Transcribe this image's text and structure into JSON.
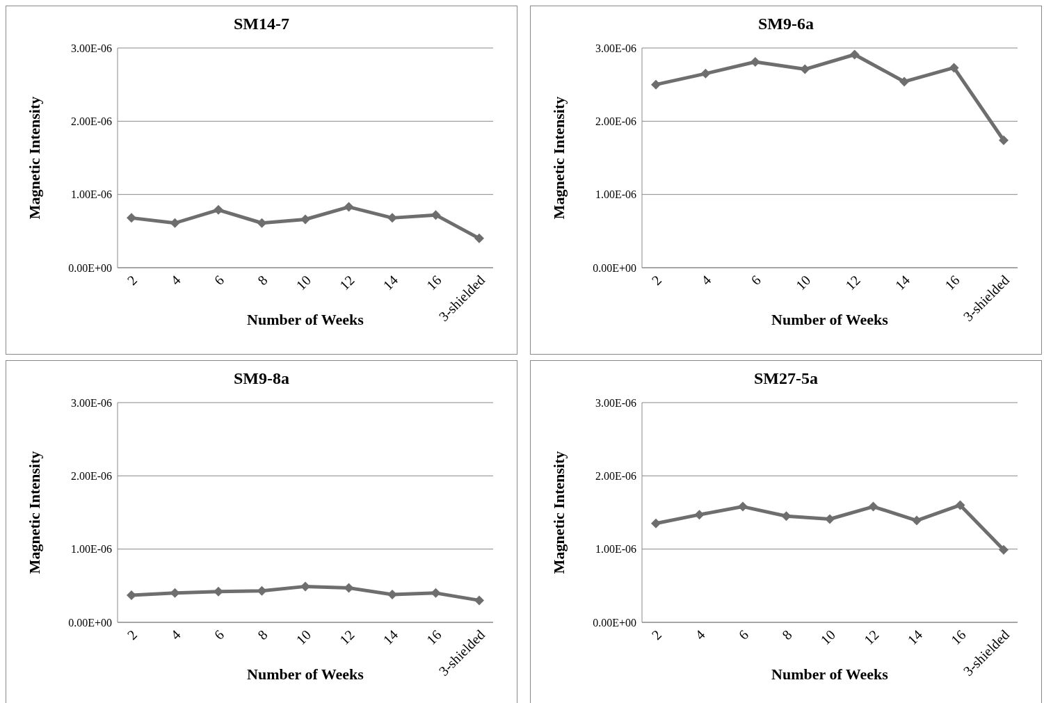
{
  "chart_data": [
    {
      "type": "line",
      "title": "SM14-7",
      "xlabel": "Number of  Weeks",
      "ylabel": "Magnetic Intensity",
      "categories": [
        "2",
        "4",
        "6",
        "8",
        "10",
        "12",
        "14",
        "16",
        "3-shielded"
      ],
      "series": [
        {
          "color": "#6e6e6e",
          "values": [
            6.8e-07,
            6.1e-07,
            7.9e-07,
            6.1e-07,
            6.6e-07,
            8.3e-07,
            6.8e-07,
            7.2e-07,
            4e-07
          ]
        }
      ],
      "ylim": [
        0,
        3e-06
      ],
      "yticks": [
        {
          "value": 0,
          "label": "0.00E+00"
        },
        {
          "value": 1e-06,
          "label": "1.00E-06"
        },
        {
          "value": 2e-06,
          "label": "2.00E-06"
        },
        {
          "value": 3e-06,
          "label": "3.00E-06"
        }
      ],
      "grid": "y",
      "marker": "diamond"
    },
    {
      "type": "line",
      "title": "SM9-6a",
      "xlabel": "Number of Weeks",
      "ylabel": "Magnetic Intensity",
      "categories": [
        "2",
        "4",
        "6",
        "10",
        "12",
        "14",
        "16",
        "3-shielded"
      ],
      "series": [
        {
          "color": "#6e6e6e",
          "values": [
            2.5e-06,
            2.65e-06,
            2.81e-06,
            2.71e-06,
            2.91e-06,
            2.54e-06,
            2.73e-06,
            1.74e-06
          ]
        }
      ],
      "ylim": [
        0,
        3e-06
      ],
      "yticks": [
        {
          "value": 0,
          "label": "0.00E+00"
        },
        {
          "value": 1e-06,
          "label": "1.00E-06"
        },
        {
          "value": 2e-06,
          "label": "2.00E-06"
        },
        {
          "value": 3e-06,
          "label": "3.00E-06"
        }
      ],
      "grid": "y",
      "marker": "diamond"
    },
    {
      "type": "line",
      "title": "SM9-8a",
      "xlabel": "Number of Weeks",
      "ylabel": "Magnetic Intensity",
      "categories": [
        "2",
        "4",
        "6",
        "8",
        "10",
        "12",
        "14",
        "16",
        "3-shielded"
      ],
      "series": [
        {
          "color": "#6e6e6e",
          "values": [
            3.7e-07,
            4e-07,
            4.2e-07,
            4.3e-07,
            4.9e-07,
            4.7e-07,
            3.8e-07,
            4e-07,
            3e-07
          ]
        }
      ],
      "ylim": [
        0,
        3e-06
      ],
      "yticks": [
        {
          "value": 0,
          "label": "0.00E+00"
        },
        {
          "value": 1e-06,
          "label": "1.00E-06"
        },
        {
          "value": 2e-06,
          "label": "2.00E-06"
        },
        {
          "value": 3e-06,
          "label": "3.00E-06"
        }
      ],
      "grid": "y",
      "marker": "diamond"
    },
    {
      "type": "line",
      "title": "SM27-5a",
      "xlabel": "Number of Weeks",
      "ylabel": "Magnetic Intensity",
      "categories": [
        "2",
        "4",
        "6",
        "8",
        "10",
        "12",
        "14",
        "16",
        "3-shielded"
      ],
      "series": [
        {
          "color": "#6e6e6e",
          "values": [
            1.35e-06,
            1.47e-06,
            1.58e-06,
            1.45e-06,
            1.41e-06,
            1.58e-06,
            1.39e-06,
            1.6e-06,
            9.9e-07
          ]
        }
      ],
      "ylim": [
        0,
        3e-06
      ],
      "yticks": [
        {
          "value": 0,
          "label": "0.00E+00"
        },
        {
          "value": 1e-06,
          "label": "1.00E-06"
        },
        {
          "value": 2e-06,
          "label": "2.00E-06"
        },
        {
          "value": 3e-06,
          "label": "3.00E-06"
        }
      ],
      "grid": "y",
      "marker": "diamond"
    }
  ]
}
